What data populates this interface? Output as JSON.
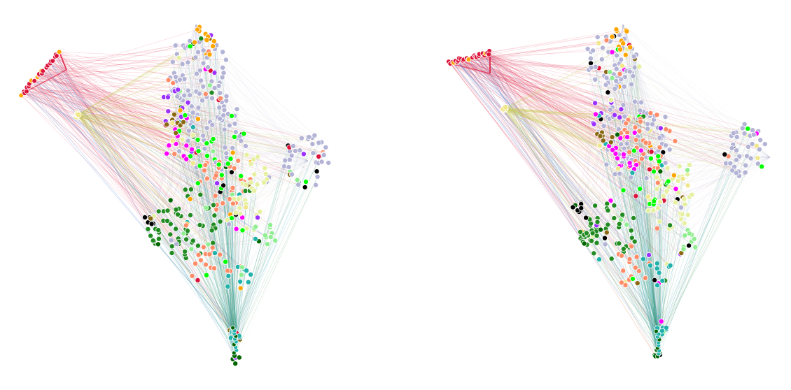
{
  "figure": {
    "panels": [
      {
        "id": "left",
        "node_palette": [
          "#b3b3d6",
          "#ff8c69",
          "#228b22",
          "#e6f0a0",
          "#90ee90",
          "#ff00ff",
          "#ffa500",
          "#9b30ff",
          "#00ff00",
          "#8b6914",
          "#20b2aa",
          "#dc143c",
          "#000000",
          "#f0e68c",
          "#006400"
        ],
        "edge_colors": [
          "#dc143c",
          "#4a7fd0",
          "#c8c850",
          "#1aa0b0",
          "#2e8b57",
          "#c070a0",
          "#a0a0c8",
          "#b0d080"
        ]
      },
      {
        "id": "right",
        "node_palette": [
          "#b3b3d6",
          "#ff8c69",
          "#228b22",
          "#e6f0a0",
          "#90ee90",
          "#ff00ff",
          "#ffa500",
          "#9b30ff",
          "#00ff00",
          "#8b6914",
          "#20b2aa",
          "#dc143c",
          "#000000",
          "#f0e68c",
          "#006400"
        ],
        "edge_colors": [
          "#dc143c",
          "#4a7fd0",
          "#c8c850",
          "#1aa0b0",
          "#2e8b57",
          "#c070a0",
          "#a0a0c8",
          "#b0d080"
        ]
      }
    ]
  }
}
